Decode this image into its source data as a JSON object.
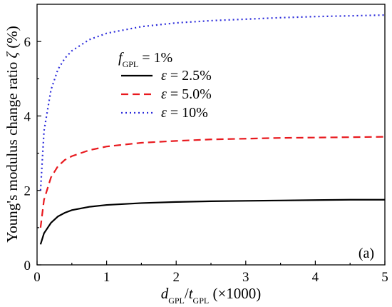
{
  "chart_data": {
    "type": "line",
    "panel_label": "(a)",
    "xlabel": {
      "parts": [
        {
          "text": "d",
          "style": "italic"
        },
        {
          "text": "GPL",
          "style": "sub"
        },
        {
          "text": "/",
          "style": "normal"
        },
        {
          "text": "t",
          "style": "italic"
        },
        {
          "text": "GPL",
          "style": "sub"
        },
        {
          "text": " (×1000)",
          "style": "normal"
        }
      ]
    },
    "ylabel": {
      "parts": [
        {
          "text": "Young's modulus change ratio ",
          "style": "normal"
        },
        {
          "text": "ζ",
          "style": "italic"
        },
        {
          "text": " (%)",
          "style": "normal"
        }
      ]
    },
    "xlim": [
      0,
      5
    ],
    "ylim": [
      0,
      7
    ],
    "xticks": [
      "0",
      "1",
      "2",
      "3",
      "4",
      "5"
    ],
    "yticks": [
      "0",
      "2",
      "4",
      "6"
    ],
    "grid": false,
    "legend": {
      "position": "upper-left",
      "header": {
        "parts": [
          {
            "text": "f",
            "style": "italic"
          },
          {
            "text": "GPL",
            "style": "sub"
          },
          {
            "text": " = 1%",
            "style": "normal"
          }
        ]
      }
    },
    "series": [
      {
        "name": "ε = 2.5%",
        "name_parts": [
          {
            "text": "ε",
            "style": "italic"
          },
          {
            "text": " = 2.5%",
            "style": "normal"
          }
        ],
        "color": "#000000",
        "dash": "solid",
        "x": [
          0.05,
          0.1,
          0.2,
          0.3,
          0.4,
          0.5,
          0.75,
          1.0,
          1.5,
          2.0,
          2.5,
          3.0,
          3.5,
          4.0,
          4.5,
          5.0
        ],
        "y": [
          0.55,
          0.85,
          1.13,
          1.3,
          1.4,
          1.47,
          1.56,
          1.61,
          1.66,
          1.69,
          1.71,
          1.72,
          1.73,
          1.74,
          1.75,
          1.75
        ]
      },
      {
        "name": "ε = 5.0%",
        "name_parts": [
          {
            "text": "ε",
            "style": "italic"
          },
          {
            "text": " = 5.0%",
            "style": "normal"
          }
        ],
        "color": "#e8191e",
        "dash": "dashed",
        "x": [
          0.05,
          0.1,
          0.2,
          0.3,
          0.4,
          0.5,
          0.75,
          1.0,
          1.5,
          2.0,
          2.5,
          3.0,
          3.5,
          4.0,
          4.5,
          5.0
        ],
        "y": [
          1.0,
          1.75,
          2.35,
          2.65,
          2.82,
          2.92,
          3.08,
          3.18,
          3.28,
          3.33,
          3.37,
          3.39,
          3.41,
          3.42,
          3.43,
          3.44
        ]
      },
      {
        "name": "ε = 10%",
        "name_parts": [
          {
            "text": "ε",
            "style": "italic"
          },
          {
            "text": " = 10%",
            "style": "normal"
          }
        ],
        "color": "#2b2bdb",
        "dash": "dotted",
        "x": [
          0.05,
          0.1,
          0.2,
          0.3,
          0.4,
          0.5,
          0.75,
          1.0,
          1.5,
          2.0,
          2.5,
          3.0,
          3.5,
          4.0,
          4.5,
          5.0
        ],
        "y": [
          2.0,
          3.6,
          4.7,
          5.25,
          5.55,
          5.75,
          6.05,
          6.22,
          6.4,
          6.5,
          6.56,
          6.6,
          6.64,
          6.67,
          6.69,
          6.71
        ]
      }
    ]
  }
}
